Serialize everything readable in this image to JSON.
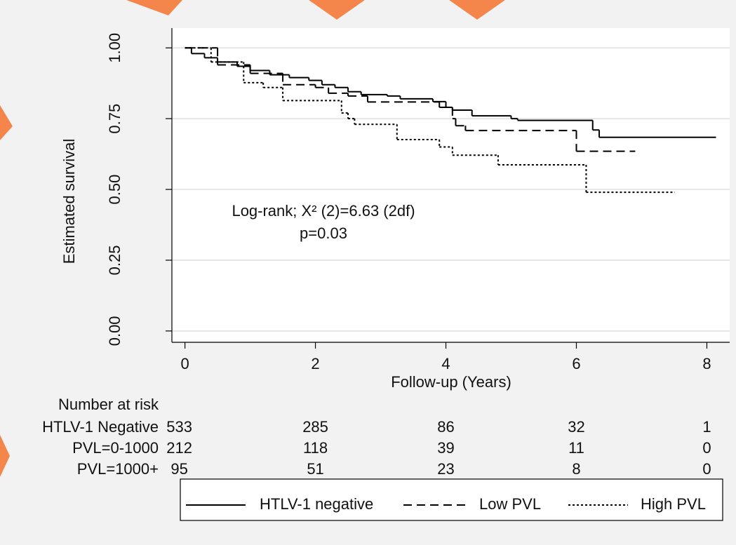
{
  "chart_data": {
    "type": "line",
    "step": true,
    "xlabel": "Follow-up (Years)",
    "ylabel": "Estimated survival",
    "xlim": [
      -0.2,
      8.35
    ],
    "ylim": [
      -0.04,
      1.07
    ],
    "xticks": [
      0,
      2,
      4,
      6,
      8
    ],
    "yticks": [
      {
        "value": 0,
        "label": "0.00"
      },
      {
        "value": 0.25,
        "label": "0.25"
      },
      {
        "value": 0.5,
        "label": "0.50"
      },
      {
        "value": 0.75,
        "label": "0.75"
      },
      {
        "value": 1,
        "label": "1.00"
      }
    ],
    "grid": true,
    "annotations": [
      "Log-rank; X² (2)=6.63 (2df)",
      "p=0.03"
    ],
    "series": [
      {
        "name": "HTLV-1 negative",
        "color": "#000000",
        "dash": "solid",
        "x": [
          0,
          0.1,
          0.3,
          0.5,
          0.8,
          1.0,
          1.3,
          1.6,
          1.9,
          2.1,
          2.3,
          2.5,
          2.7,
          3.1,
          3.3,
          3.8,
          4.0,
          4.1,
          4.4,
          5.0,
          5.1,
          6.25,
          6.35,
          8.14
        ],
        "values": [
          1,
          0.98,
          0.965,
          0.95,
          0.935,
          0.92,
          0.905,
          0.895,
          0.885,
          0.87,
          0.86,
          0.845,
          0.835,
          0.83,
          0.82,
          0.81,
          0.79,
          0.78,
          0.76,
          0.75,
          0.744,
          0.71,
          0.684,
          0.684
        ]
      },
      {
        "name": "Low PVL",
        "color": "#000000",
        "dash": "dashed",
        "x": [
          0,
          0.5,
          1.0,
          1.5,
          2.0,
          2.2,
          2.5,
          2.8,
          3.9,
          4.1,
          4.15,
          4.3,
          6.0,
          6.9
        ],
        "values": [
          1,
          0.94,
          0.91,
          0.87,
          0.86,
          0.84,
          0.83,
          0.809,
          0.79,
          0.75,
          0.725,
          0.708,
          0.635,
          0.635
        ]
      },
      {
        "name": "High PVL",
        "color": "#000000",
        "dash": "dotted",
        "x": [
          0,
          0.4,
          0.9,
          1.2,
          1.5,
          2.4,
          2.5,
          2.6,
          3.25,
          3.9,
          4.1,
          4.8,
          6.15,
          7.5
        ],
        "values": [
          1,
          0.95,
          0.877,
          0.86,
          0.814,
          0.77,
          0.75,
          0.73,
          0.676,
          0.65,
          0.621,
          0.587,
          0.49,
          0.49
        ]
      }
    ],
    "risk_table": {
      "title": "Number at risk",
      "rows": [
        {
          "label": "HTLV-1 Negative",
          "counts": [
            533,
            285,
            86,
            32,
            1
          ]
        },
        {
          "label": "PVL=0-1000",
          "counts": [
            212,
            118,
            39,
            11,
            0
          ]
        },
        {
          "label": "PVL=1000+",
          "counts": [
            95,
            51,
            23,
            8,
            0
          ]
        }
      ]
    }
  }
}
